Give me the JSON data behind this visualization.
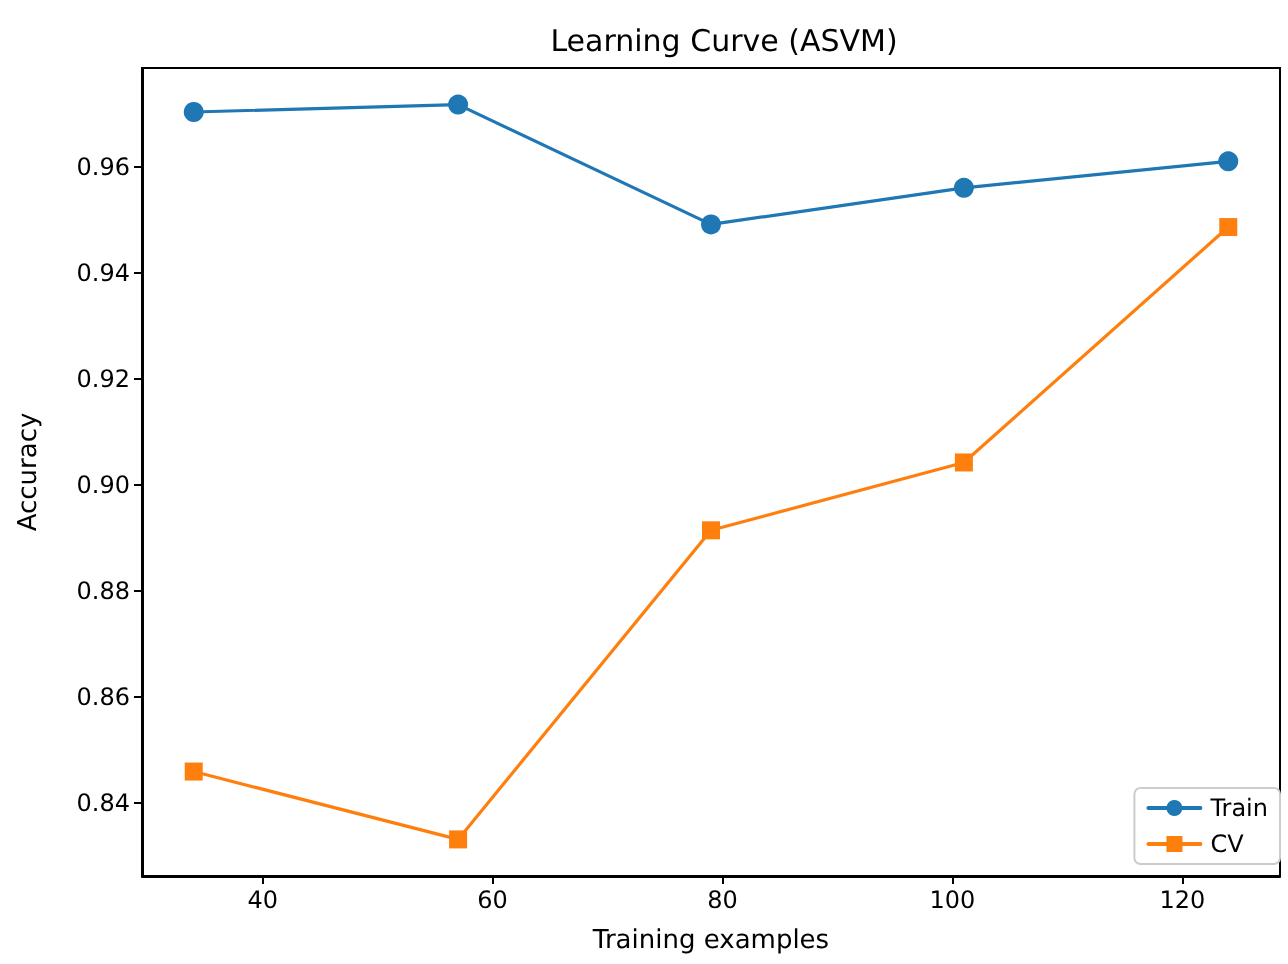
{
  "chart_data": {
    "type": "line",
    "title": "Learning Curve (ASVM)",
    "xlabel": "Training examples",
    "ylabel": "Accuracy",
    "x": [
      34,
      57,
      79,
      101,
      124
    ],
    "series": [
      {
        "name": "Train",
        "color": "#1f77b4",
        "marker": "circle",
        "values": [
          0.9704,
          0.9718,
          0.9492,
          0.9561,
          0.9611
        ]
      },
      {
        "name": "CV",
        "color": "#ff7f0e",
        "marker": "square",
        "values": [
          0.846,
          0.8332,
          0.8915,
          0.9043,
          0.9487
        ]
      }
    ],
    "xlim": [
      29.5,
      128.5
    ],
    "xticks": [
      40,
      60,
      80,
      100,
      120
    ],
    "ylim": [
      0.8263,
      0.9787
    ],
    "yticks": [
      0.84,
      0.86,
      0.88,
      {
        "value": 0.9,
        "label": "0.90"
      },
      0.92,
      0.94,
      0.96
    ],
    "grid": false,
    "legend": "bottom right",
    "line_style": "solid"
  }
}
